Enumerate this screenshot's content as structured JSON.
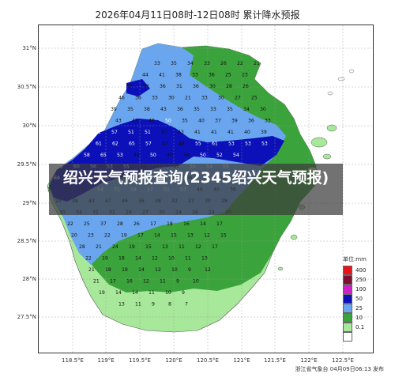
{
  "title": "2026年04月11日08时-12日08时 累计降水预报",
  "banner": "绍兴天气预报查询(2345绍兴天气预报)",
  "credit": "浙江省气象台 04月09日06:13 发布",
  "lat_labels": [
    "31°N",
    "30.5°N",
    "30°N",
    "29.5°N",
    "29°N",
    "28.5°N",
    "28°N",
    "27.5°N"
  ],
  "lon_labels": [
    "118.5°E",
    "119°E",
    "119.5°E",
    "120°E",
    "120.5°E",
    "121°E",
    "121.5°E",
    "122°E",
    "122.5°E"
  ],
  "legend": {
    "title": "单位:mm",
    "levels": [
      {
        "label": "400",
        "color": "#e8141c"
      },
      {
        "label": "250",
        "color": "#7d1030"
      },
      {
        "label": "100",
        "color": "#d11ec8"
      },
      {
        "label": "50",
        "color": "#0b10b8"
      },
      {
        "label": "25",
        "color": "#6aa6ef"
      },
      {
        "label": "10",
        "color": "#3ba33b"
      },
      {
        "label": "0.1",
        "color": "#a8e89a"
      },
      {
        "label": "",
        "color": "#ffffff"
      }
    ]
  },
  "colors": {
    "band_0_1": "#a8e89a",
    "band_10": "#3ba33b",
    "band_25": "#6aa6ef",
    "band_50": "#0b10b8"
  },
  "value_rows": [
    "33 35 34 33 26 22 21",
    "44 41 38 33 36 25 23",
    "57 52 36 31 36 30 28 26",
    "46 36 33 30 21 33 30 27 25",
    "39 35 38 43 36 35 33 35 34 30",
    "58 43 45 48 50 35 40 37 39 36 33",
    "61 57 51 51 47 43 41 41 41 40 39",
    "65 61 62 65 57 47 48 55 61 53 53 53",
    "63 58 65 53 49 50 40 46 50 52 54",
    "68 60 56 53 55 49 44 47 50 54 56",
    "69 67 64 51 47 47 38 39 36 34 33",
    "30 32 37 54 71 59 57 51 53 46 40 36",
    "29 38 43 47 46 36 38 32 27 30 28",
    "30 34 32 31 29 27 30 24 26 24 20",
    "22 25 37 28 26 17 18 16 14 17",
    "20 23 22 19 17 14 15 13 12 15",
    "28 21 24 19 15 13 11 12 17",
    "22 19 18 14 12 10 11 13",
    "21 18 19 14 12 10 9 12",
    "21 17 16 12 11 9 10",
    "19 14 14 11 10 9",
    "13 11 9 8 7"
  ]
}
